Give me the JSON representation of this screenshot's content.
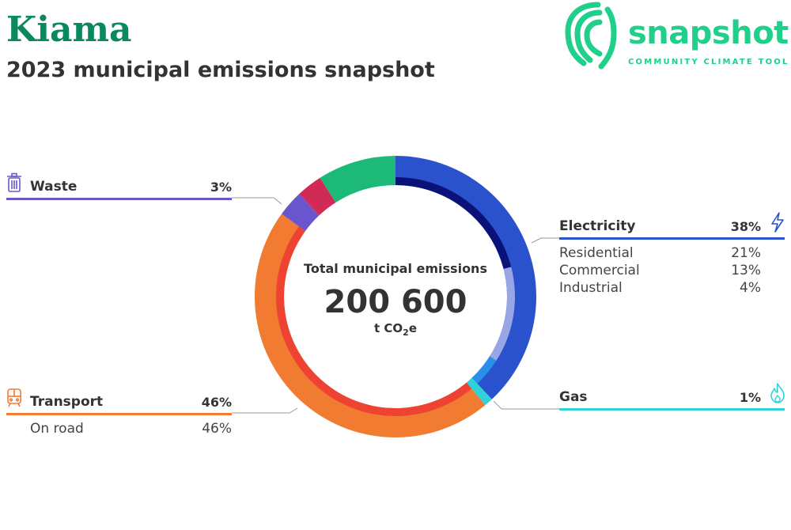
{
  "header": {
    "title": "Kiama",
    "subtitle": "2023 municipal emissions snapshot"
  },
  "logo": {
    "word": "snapshot",
    "tagline": "COMMUNITY CLIMATE TOOL"
  },
  "center": {
    "label": "Total municipal emissions",
    "value": "200 600",
    "unit_prefix": "t CO",
    "unit_sub": "2",
    "unit_suffix": "e"
  },
  "colors": {
    "brand": "#1fcf8a",
    "title": "#0a8a5c",
    "electricity": "#2a52cc",
    "electricity_residential": "#0a127a",
    "electricity_commercial": "#99a6e6",
    "electricity_industrial": "#2a8fe8",
    "gas": "#2fd3d7",
    "transport": "#f07b31",
    "transport_on_road": "#ee4332",
    "waste": "#6a56cc",
    "crimson": "#d12a57",
    "green": "#1cb979"
  },
  "chart_data": {
    "type": "pie",
    "title": "Total municipal emissions",
    "total": 200600,
    "unit": "t CO2e",
    "start_at_top": true,
    "clockwise": true,
    "legend_layout": "labels placed left and right of the ring",
    "outer_ring": [
      {
        "name": "Electricity",
        "value": 38,
        "color": "#2a52cc"
      },
      {
        "name": "Gas",
        "value": 1,
        "color": "#2fd3d7"
      },
      {
        "name": "Transport",
        "value": 46,
        "color": "#f07b31"
      },
      {
        "name": "Waste",
        "value": 3,
        "color": "#6a56cc"
      },
      {
        "name": "",
        "value": 3,
        "color": "#d12a57"
      },
      {
        "name": "",
        "value": 9,
        "color": "#1cb979"
      }
    ],
    "inner_ring": [
      {
        "parent": "Electricity",
        "name": "Residential",
        "value": 21,
        "color": "#0a127a"
      },
      {
        "parent": "Electricity",
        "name": "Commercial",
        "value": 13,
        "color": "#99a6e6"
      },
      {
        "parent": "Electricity",
        "name": "Industrial",
        "value": 4,
        "color": "#2a8fe8"
      },
      {
        "parent": "Gas",
        "name": "",
        "value": 1,
        "color": "#2fd3d7"
      },
      {
        "parent": "Transport",
        "name": "On road",
        "value": 46,
        "color": "#ee4332"
      }
    ]
  },
  "legend": {
    "waste": {
      "label": "Waste",
      "pct": "3%",
      "icon": "trash-bin-icon"
    },
    "electricity": {
      "label": "Electricity",
      "pct": "38%",
      "icon": "lightning-bolt-icon",
      "subs": [
        {
          "label": "Residential",
          "pct": "21%"
        },
        {
          "label": "Commercial",
          "pct": "13%"
        },
        {
          "label": "Industrial",
          "pct": "4%"
        }
      ]
    },
    "gas": {
      "label": "Gas",
      "pct": "1%",
      "icon": "flame-icon"
    },
    "transport": {
      "label": "Transport",
      "pct": "46%",
      "icon": "train-icon",
      "subs": [
        {
          "label": "On road",
          "pct": "46%"
        }
      ]
    }
  }
}
